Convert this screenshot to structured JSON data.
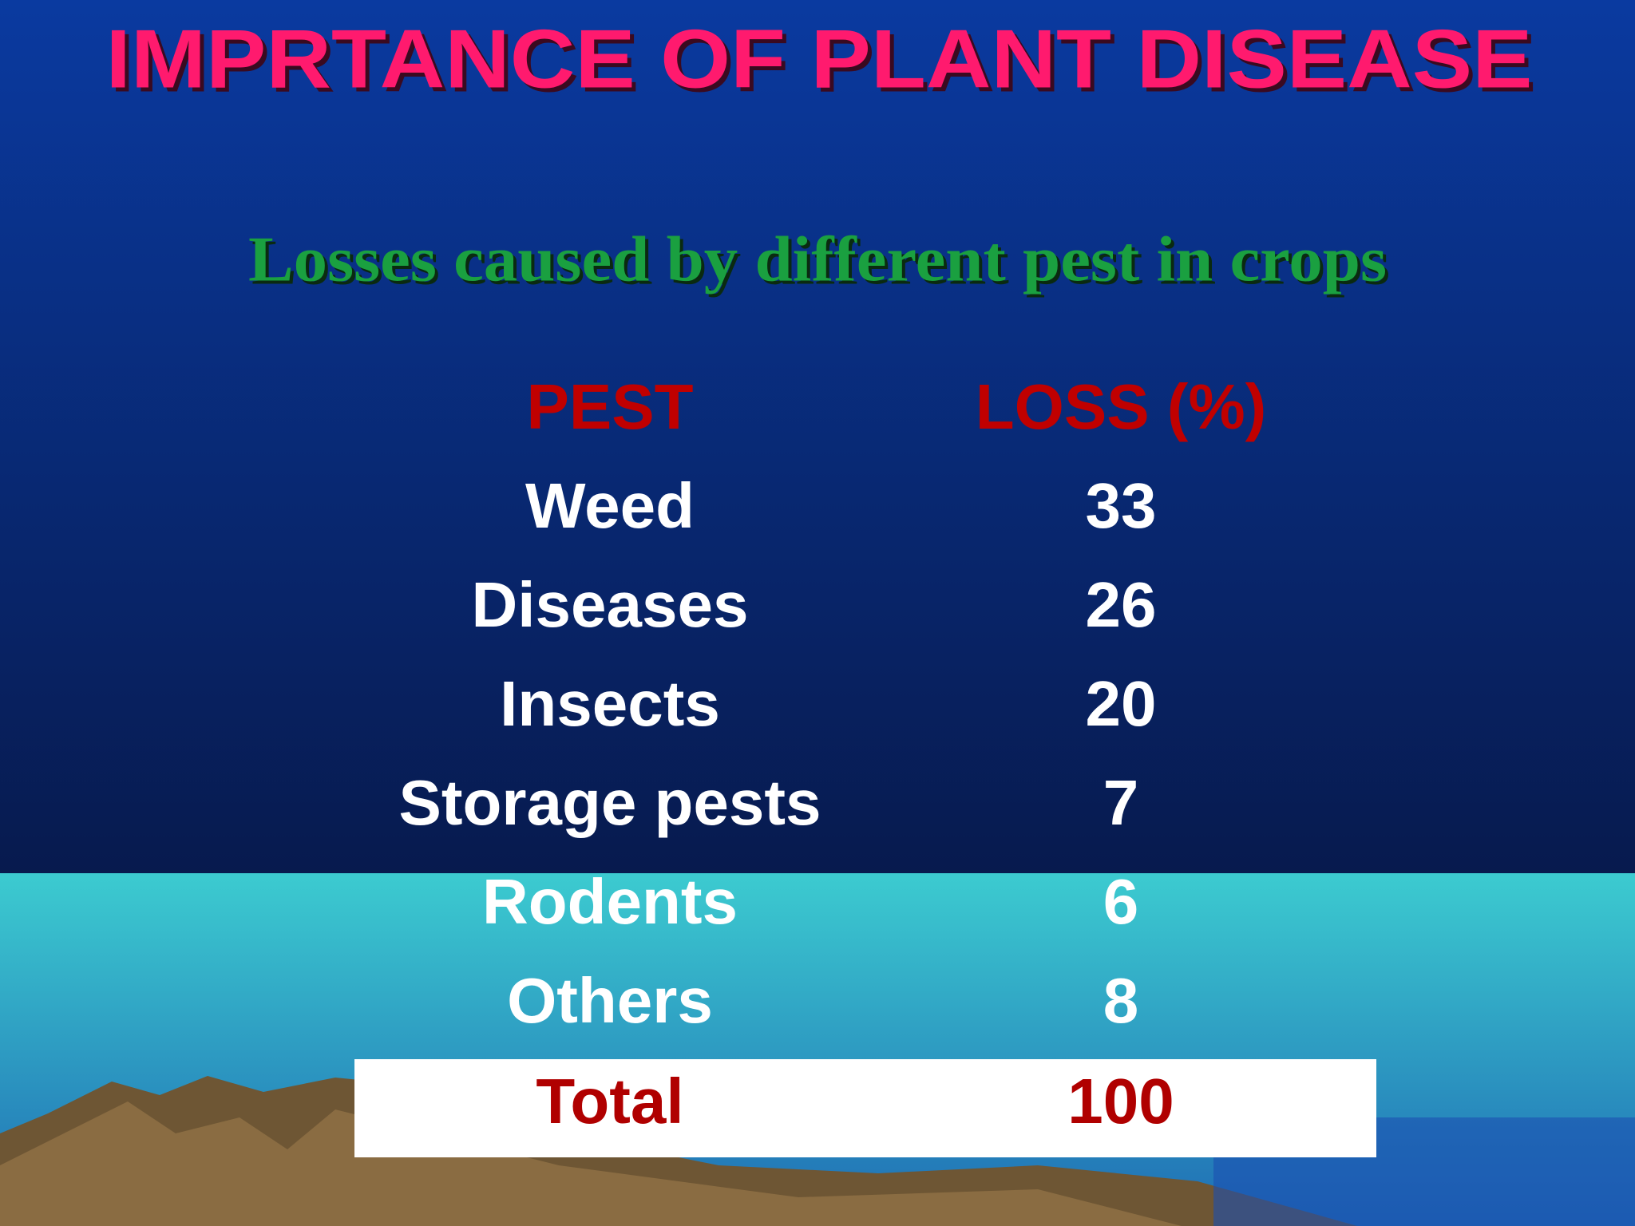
{
  "title": "IMPRTANCE OF PLANT DISEASE",
  "subtitle": "Losses caused by different pest in crops",
  "table": {
    "header": [
      "PEST",
      "LOSS (%)"
    ],
    "rows": [
      [
        "Weed",
        33
      ],
      [
        "Diseases",
        26
      ],
      [
        "Insects",
        20
      ],
      [
        "Storage pests",
        7
      ],
      [
        "Rodents",
        6
      ],
      [
        "Others",
        8
      ]
    ],
    "total": [
      "Total",
      100
    ]
  }
}
